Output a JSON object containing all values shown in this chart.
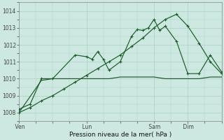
{
  "bg_color": "#cce8e0",
  "grid_color": "#aad0c4",
  "line_color": "#1a5c28",
  "xlabel": "Pression niveau de la mer( hPa )",
  "ylim": [
    1007.5,
    1014.5
  ],
  "yticks": [
    1008,
    1009,
    1010,
    1011,
    1012,
    1013,
    1014
  ],
  "xtick_labels": [
    " Ven",
    " Lun",
    " Sam",
    " Dim"
  ],
  "xtick_xvals": [
    0,
    36,
    72,
    90
  ],
  "xlim": [
    0,
    108
  ],
  "line_flat_x": [
    0,
    12,
    18,
    24,
    30,
    36,
    42,
    48,
    54,
    60,
    66,
    72,
    78,
    84,
    90,
    96,
    102,
    108
  ],
  "line_flat_y": [
    1008.0,
    1009.9,
    1010.0,
    1010.0,
    1010.0,
    1010.0,
    1010.0,
    1010.0,
    1010.1,
    1010.1,
    1010.1,
    1010.1,
    1010.0,
    1010.0,
    1010.0,
    1010.0,
    1010.1,
    1010.1
  ],
  "line_diag_x": [
    0,
    6,
    12,
    18,
    24,
    30,
    36,
    42,
    48,
    54,
    60,
    66,
    72,
    78,
    84,
    90,
    96,
    102,
    108
  ],
  "line_diag_y": [
    1008.0,
    1008.3,
    1008.7,
    1009.0,
    1009.4,
    1009.8,
    1010.2,
    1010.6,
    1011.0,
    1011.4,
    1011.9,
    1012.4,
    1013.0,
    1013.5,
    1013.8,
    1013.1,
    1012.1,
    1011.0,
    1010.3
  ],
  "line_jagged_x": [
    0,
    6,
    12,
    18,
    30,
    36,
    39,
    42,
    45,
    48,
    54,
    60,
    63,
    66,
    69,
    72,
    75,
    78,
    84,
    90,
    96,
    102,
    108
  ],
  "line_jagged_y": [
    1008.2,
    1008.5,
    1010.0,
    1010.0,
    1011.4,
    1011.3,
    1011.15,
    1011.6,
    1011.15,
    1010.5,
    1011.0,
    1012.5,
    1012.9,
    1012.85,
    1013.0,
    1013.5,
    1012.85,
    1013.1,
    1012.2,
    1010.3,
    1010.3,
    1011.4,
    1010.4
  ]
}
